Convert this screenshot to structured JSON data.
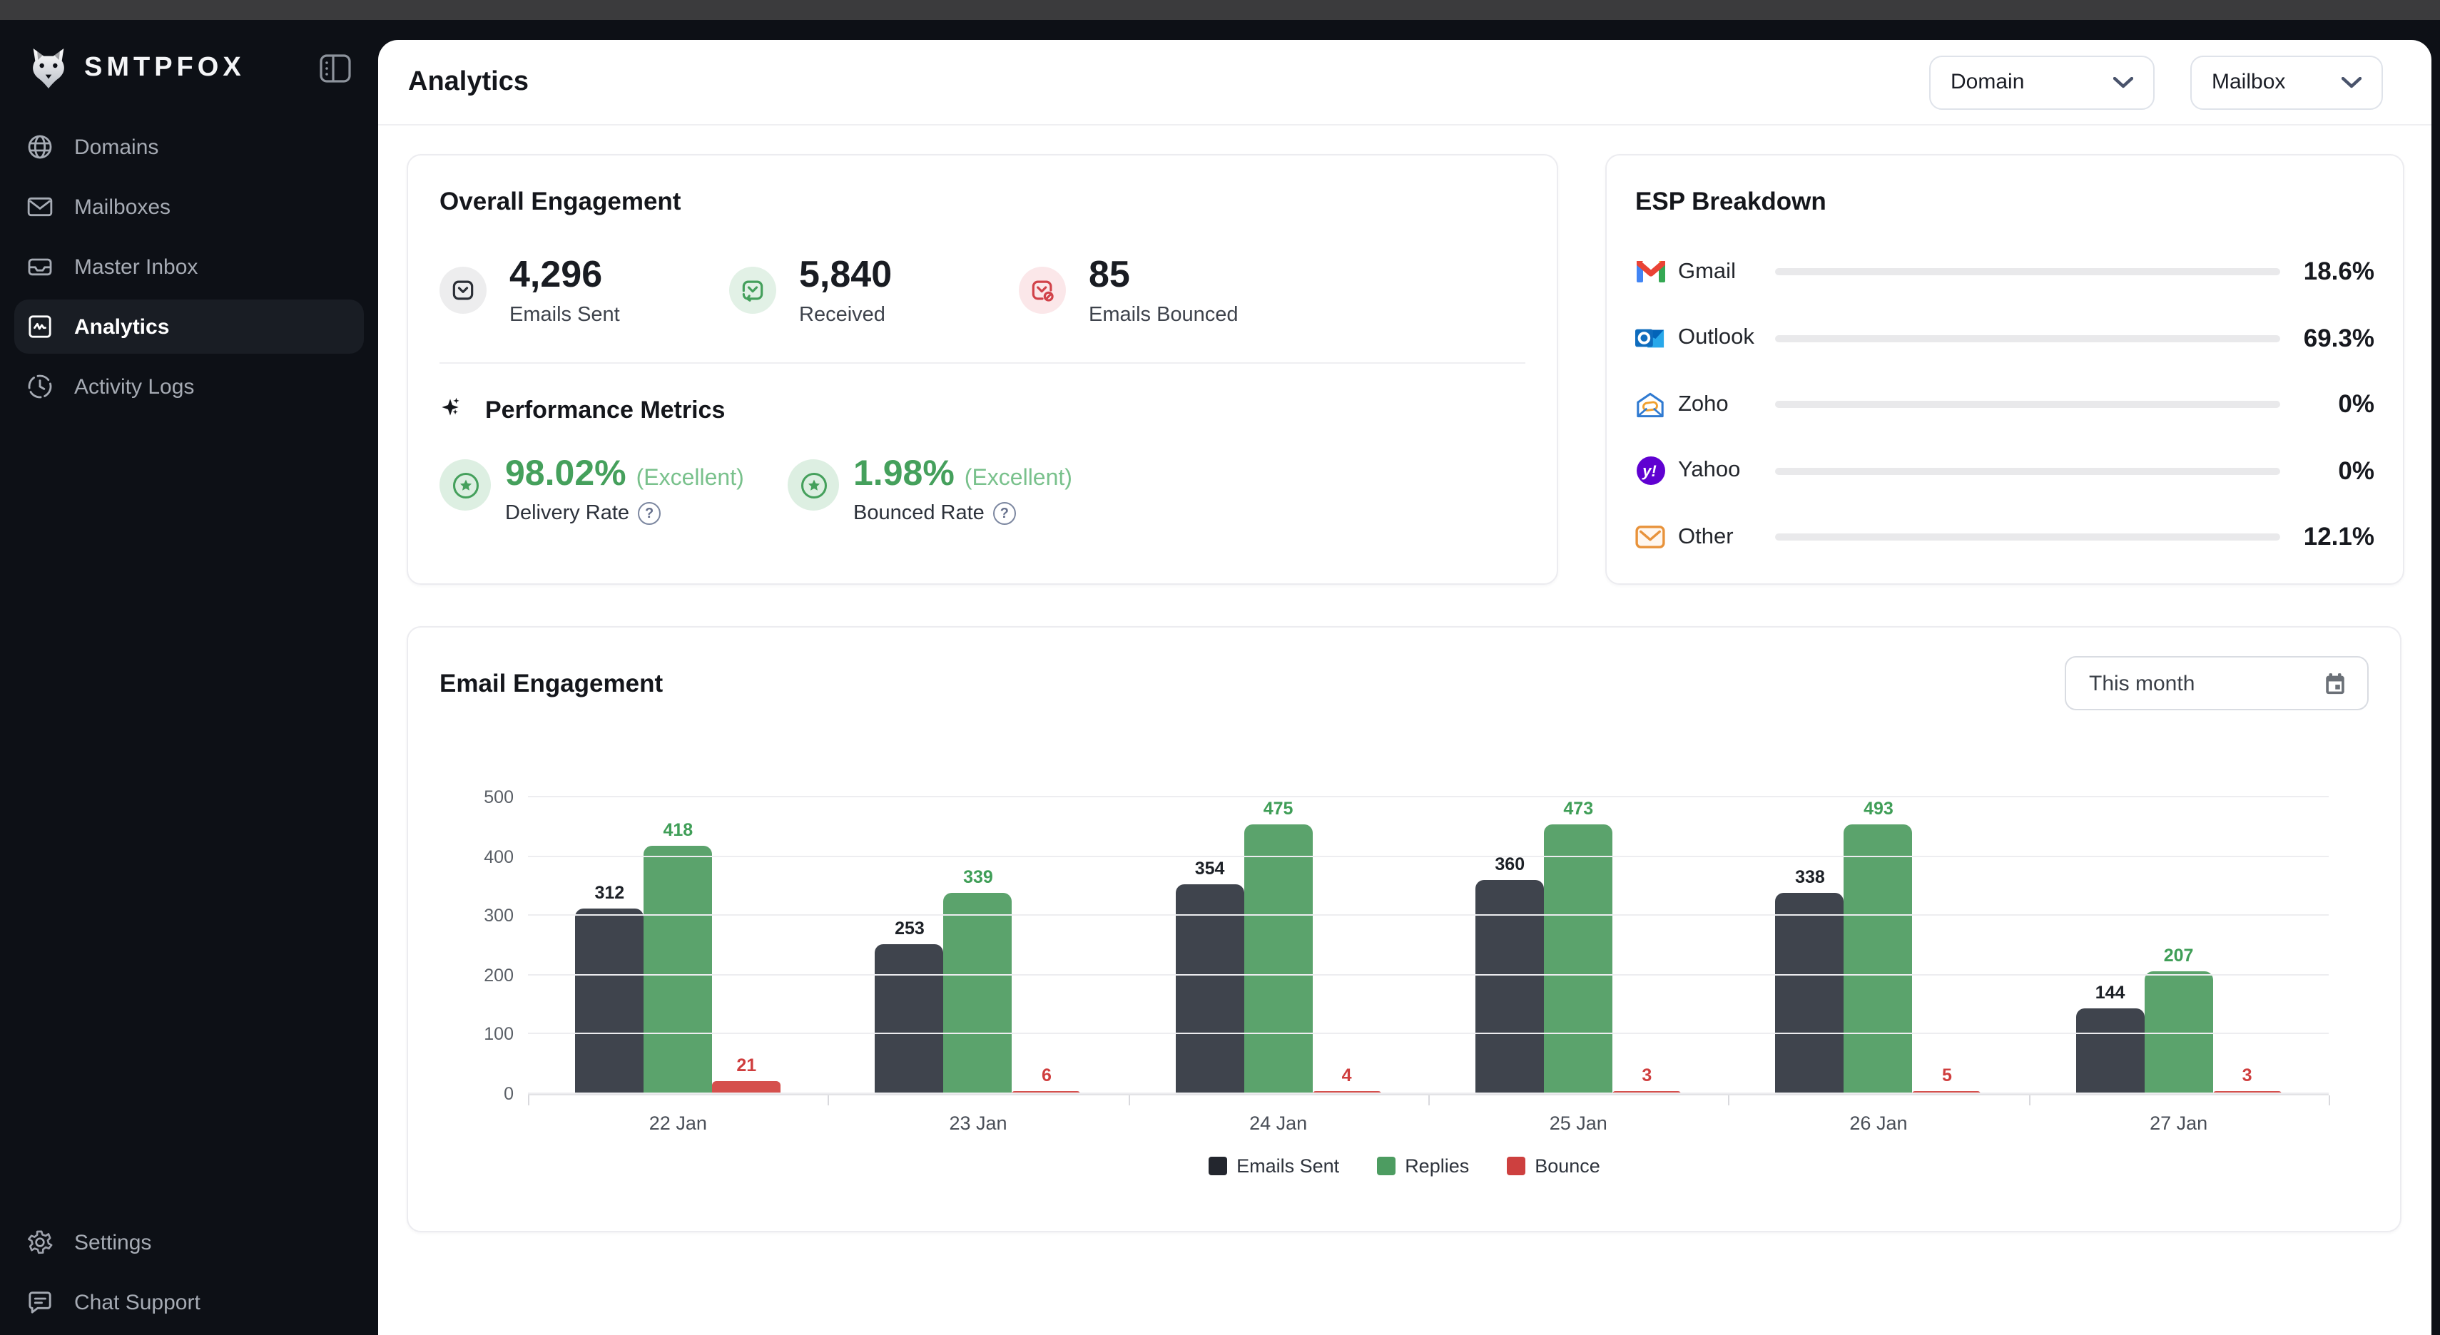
{
  "window": {
    "top_strip_color": "#3b3b3d"
  },
  "sidebar": {
    "brand": "SMTPFOX",
    "brand_icon": "fox-logo-icon",
    "collapse_icon": "panel-toggle-icon",
    "items": [
      {
        "label": "Domains",
        "icon": "globe-icon",
        "active": false
      },
      {
        "label": "Mailboxes",
        "icon": "envelope-icon",
        "active": false
      },
      {
        "label": "Master Inbox",
        "icon": "inbox-tray-icon",
        "active": false
      },
      {
        "label": "Analytics",
        "icon": "chart-pulse-icon",
        "active": true
      },
      {
        "label": "Activity Logs",
        "icon": "clock-icon",
        "active": false
      }
    ],
    "footer_items": [
      {
        "label": "Settings",
        "icon": "gear-icon"
      },
      {
        "label": "Chat Support",
        "icon": "chat-bubble-icon"
      }
    ]
  },
  "header": {
    "title": "Analytics",
    "filters": [
      {
        "label": "Domain",
        "icon": "chevron-down-icon"
      },
      {
        "label": "Mailbox",
        "icon": "chevron-down-icon"
      }
    ]
  },
  "overall": {
    "title": "Overall Engagement",
    "stats": [
      {
        "value": "4,296",
        "label": "Emails Sent",
        "icon": "mail-sent-icon",
        "circle_color": "#ededee",
        "icon_color": "#2b2f36"
      },
      {
        "value": "5,840",
        "label": "Received",
        "icon": "mail-received-icon",
        "circle_color": "#e2f1e6",
        "icon_color": "#45a05c"
      },
      {
        "value": "85",
        "label": "Emails Bounced",
        "icon": "mail-bounced-icon",
        "circle_color": "#fbe7e9",
        "icon_color": "#d14249"
      }
    ],
    "performance": {
      "title": "Performance Metrics",
      "icon": "sparkles-icon",
      "metrics": [
        {
          "value": "98.02%",
          "qualifier": "(Excellent)",
          "label": "Delivery Rate",
          "icon": "star-circle-icon",
          "help_icon": "help-icon"
        },
        {
          "value": "1.98%",
          "qualifier": "(Excellent)",
          "label": "Bounced Rate",
          "icon": "star-circle-icon",
          "help_icon": "help-icon"
        }
      ],
      "accent_color": "#45a05c"
    }
  },
  "esp": {
    "title": "ESP Breakdown",
    "track_color": "#e9e9eb",
    "fill_color": "#23262e",
    "rows": [
      {
        "name": "Gmail",
        "icon": "gmail-icon",
        "percent": "18.6%",
        "value": 18.6
      },
      {
        "name": "Outlook",
        "icon": "outlook-icon",
        "percent": "69.3%",
        "value": 69.3
      },
      {
        "name": "Zoho",
        "icon": "zoho-icon",
        "percent": "0%",
        "value": 0
      },
      {
        "name": "Yahoo",
        "icon": "yahoo-icon",
        "percent": "0%",
        "value": 0
      },
      {
        "name": "Other",
        "icon": "other-mail-icon",
        "percent": "12.1%",
        "value": 12.1
      }
    ]
  },
  "engagement": {
    "title": "Email Engagement",
    "period": "This month",
    "period_icon": "calendar-icon"
  },
  "chart_data": {
    "type": "bar",
    "title": "Email Engagement",
    "categories": [
      "22 Jan",
      "23 Jan",
      "24 Jan",
      "25 Jan",
      "26 Jan",
      "27 Jan"
    ],
    "series": [
      {
        "name": "Emails Sent",
        "color": "#3f444d",
        "legend_color": "#23262e",
        "label_color": "#1d2127",
        "values": [
          312,
          253,
          354,
          360,
          338,
          144
        ]
      },
      {
        "name": "Replies",
        "color": "#5ba36c",
        "legend_color": "#4d9c61",
        "label_color": "#3f9e57",
        "values": [
          418,
          339,
          475,
          473,
          493,
          207
        ]
      },
      {
        "name": "Bounce",
        "color": "#d5504d",
        "legend_color": "#cd403f",
        "label_color": "#cf3e3e",
        "values": [
          21,
          6,
          4,
          3,
          5,
          3
        ]
      }
    ],
    "xlabel": "",
    "ylabel": "",
    "ylim": [
      0,
      500
    ],
    "yticks": [
      0,
      100,
      200,
      300,
      400,
      500
    ],
    "grid": true,
    "legend_position": "bottom"
  }
}
